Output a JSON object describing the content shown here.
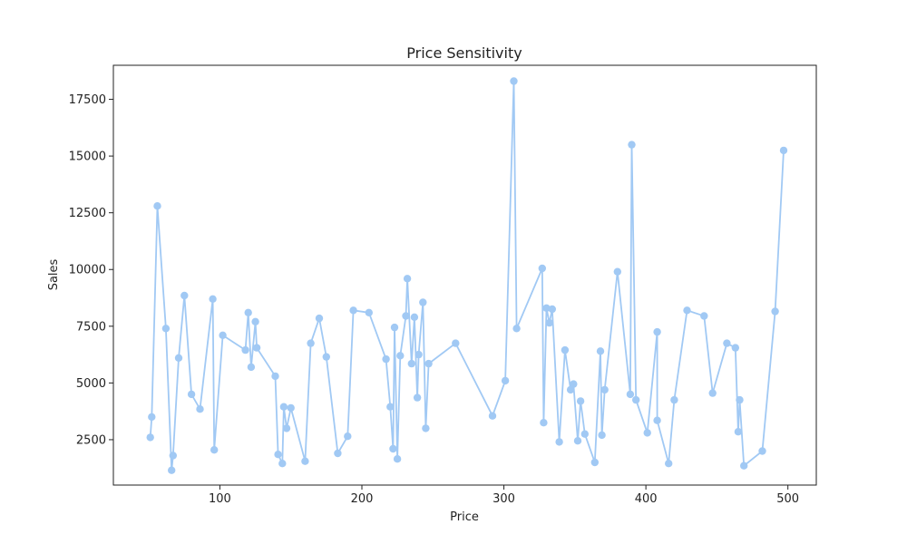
{
  "chart_data": {
    "type": "line",
    "title": "Price Sensitivity",
    "xlabel": "Price",
    "ylabel": "Sales",
    "xlim": [
      25,
      520
    ],
    "ylim": [
      500,
      19000
    ],
    "xticks": [
      100,
      200,
      300,
      400,
      500
    ],
    "yticks": [
      2500,
      5000,
      7500,
      10000,
      12500,
      15000,
      17500
    ],
    "grid": false,
    "line_color": "#a1c9f4",
    "series": [
      {
        "x": [
          51,
          52,
          56,
          62,
          66,
          67,
          71,
          75,
          80,
          86,
          95,
          96,
          102,
          118,
          120,
          122,
          125,
          126,
          139,
          141,
          144,
          145,
          147,
          150,
          160,
          164,
          170,
          175,
          183,
          190,
          194,
          205,
          217,
          220,
          222,
          223,
          225,
          227,
          231,
          232,
          235,
          237,
          239,
          240,
          243,
          245,
          247,
          266,
          292,
          301,
          307,
          309,
          327,
          328,
          330,
          332,
          334,
          339,
          343,
          347,
          349,
          352,
          354,
          357,
          364,
          368,
          369,
          371,
          380,
          389,
          390,
          393,
          401,
          408,
          408,
          416,
          420,
          429,
          441,
          447,
          457,
          463,
          465,
          466,
          469,
          482,
          491,
          497
        ],
        "y": [
          2600,
          3500,
          12800,
          7400,
          1150,
          1800,
          6100,
          8850,
          4500,
          3850,
          8700,
          2050,
          7100,
          6450,
          8100,
          5700,
          7700,
          6550,
          5300,
          1850,
          1450,
          3950,
          3000,
          3900,
          1550,
          6750,
          7850,
          6150,
          1900,
          2650,
          8200,
          8100,
          6050,
          3950,
          2100,
          7450,
          1650,
          6200,
          7950,
          9600,
          5850,
          7900,
          4350,
          6250,
          8550,
          3000,
          5850,
          6750,
          3550,
          5100,
          18300,
          7400,
          10050,
          3250,
          8300,
          7650,
          8250,
          2400,
          6450,
          4700,
          4950,
          2450,
          4200,
          2750,
          1500,
          6400,
          2700,
          4700,
          9900,
          4500,
          15500,
          4250,
          2800,
          7250,
          3350,
          1450,
          4250,
          8200,
          7950,
          4550,
          6750,
          6550,
          2850,
          4250,
          1350,
          2000,
          8150,
          15250
        ]
      }
    ]
  }
}
